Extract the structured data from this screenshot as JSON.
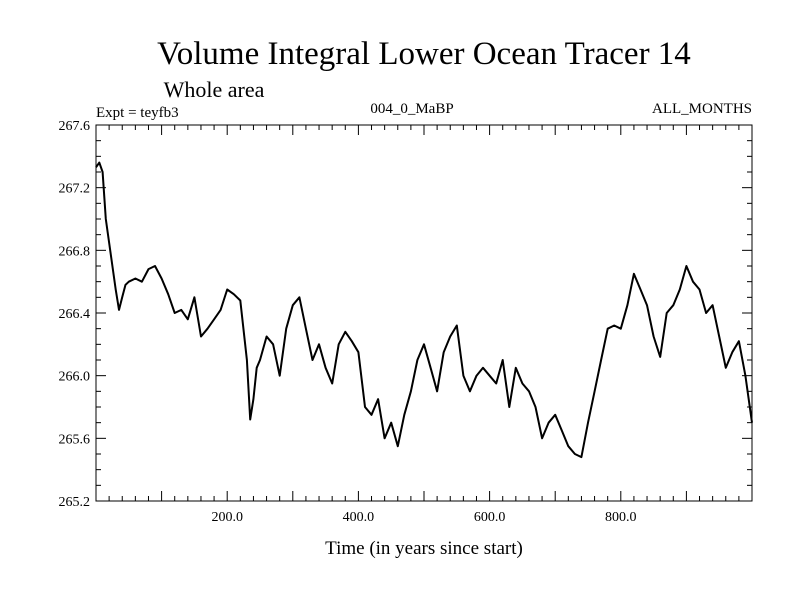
{
  "chart_data": {
    "type": "line",
    "title": "Volume Integral Lower Ocean Tracer 14",
    "subtitle": "Whole area",
    "expt_label": "Expt = teyfb3",
    "center_label": "004_0_MaBP",
    "right_label": "ALL_MONTHS",
    "xlabel": "Time (in years since start)",
    "ylabel": "",
    "xlim": [
      0,
      1000
    ],
    "ylim": [
      265.2,
      267.6
    ],
    "x_ticks": [
      200,
      400,
      600,
      800
    ],
    "x_tick_labels": [
      "200.0",
      "400.0",
      "600.0",
      "800.0"
    ],
    "y_ticks": [
      265.2,
      265.6,
      266.0,
      266.4,
      266.8,
      267.2,
      267.6
    ],
    "y_tick_labels": [
      "265.2",
      "265.6",
      "266.0",
      "266.4",
      "266.8",
      "267.2",
      "267.6"
    ],
    "series": [
      {
        "name": "Volume Integral Lower Ocean Tracer 14",
        "color": "#000000",
        "x": [
          0,
          5,
          10,
          15,
          20,
          25,
          30,
          35,
          40,
          45,
          50,
          60,
          70,
          80,
          90,
          100,
          110,
          120,
          130,
          140,
          150,
          160,
          170,
          180,
          190,
          200,
          210,
          220,
          230,
          235,
          240,
          245,
          250,
          260,
          270,
          280,
          290,
          300,
          310,
          320,
          330,
          340,
          350,
          360,
          370,
          380,
          390,
          400,
          410,
          420,
          430,
          440,
          450,
          460,
          470,
          480,
          490,
          500,
          510,
          520,
          530,
          540,
          550,
          560,
          570,
          580,
          590,
          600,
          610,
          620,
          630,
          640,
          650,
          660,
          670,
          680,
          690,
          700,
          710,
          720,
          730,
          740,
          750,
          760,
          770,
          780,
          790,
          800,
          810,
          820,
          830,
          840,
          850,
          860,
          870,
          880,
          890,
          900,
          910,
          920,
          930,
          940,
          950,
          960,
          970,
          980,
          990,
          1000
        ],
        "values": [
          267.33,
          267.36,
          267.3,
          267.0,
          266.85,
          266.7,
          266.55,
          266.42,
          266.5,
          266.58,
          266.6,
          266.62,
          266.6,
          266.68,
          266.7,
          266.62,
          266.52,
          266.4,
          266.42,
          266.36,
          266.5,
          266.25,
          266.3,
          266.36,
          266.42,
          266.55,
          266.52,
          266.48,
          266.1,
          265.72,
          265.85,
          266.05,
          266.1,
          266.25,
          266.2,
          266.0,
          266.3,
          266.45,
          266.5,
          266.3,
          266.1,
          266.2,
          266.05,
          265.95,
          266.2,
          266.28,
          266.22,
          266.15,
          265.8,
          265.75,
          265.85,
          265.6,
          265.7,
          265.55,
          265.75,
          265.9,
          266.1,
          266.2,
          266.05,
          265.9,
          266.15,
          266.25,
          266.32,
          266.0,
          265.9,
          266.0,
          266.05,
          266.0,
          265.95,
          266.1,
          265.8,
          266.05,
          265.95,
          265.9,
          265.8,
          265.6,
          265.7,
          265.75,
          265.65,
          265.55,
          265.5,
          265.48,
          265.7,
          265.9,
          266.1,
          266.3,
          266.32,
          266.3,
          266.45,
          266.65,
          266.55,
          266.45,
          266.25,
          266.12,
          266.4,
          266.45,
          266.55,
          266.7,
          266.6,
          266.55,
          266.4,
          266.45,
          266.25,
          266.05,
          266.15,
          266.22,
          266.0,
          265.7
        ]
      }
    ]
  }
}
